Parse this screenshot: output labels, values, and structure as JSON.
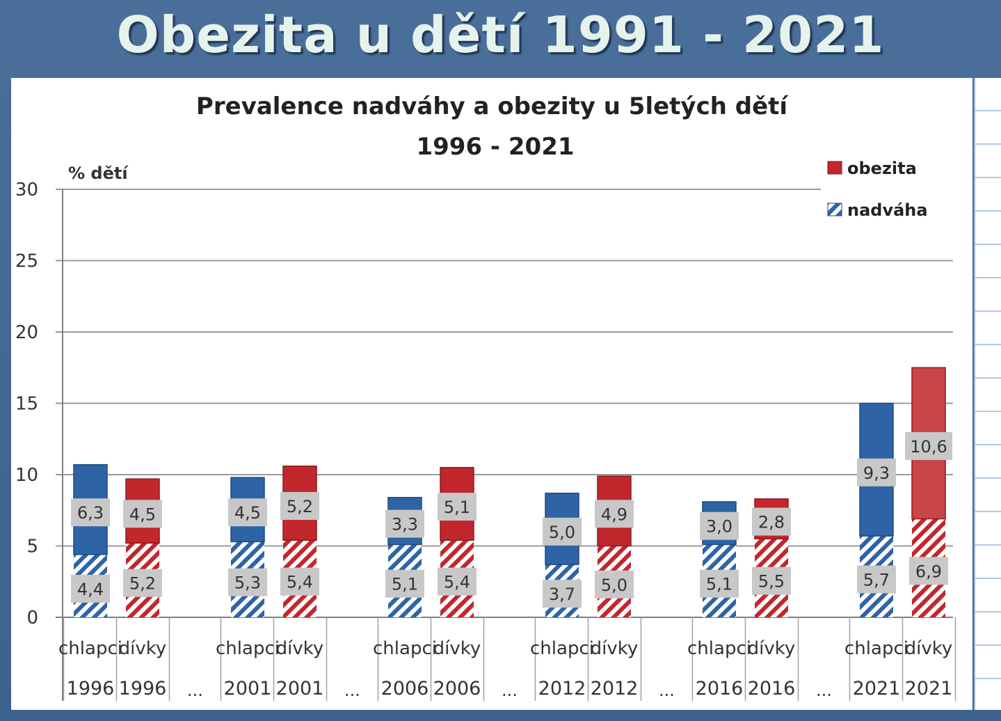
{
  "slide": {
    "title": "Obezita u dětí 1991 - 2021"
  },
  "chart_data": {
    "type": "bar",
    "stacked": true,
    "title": "Prevalence nadváhy a obezity u 5letých dětí",
    "subtitle": "1996 - 2021",
    "ylabel": "% dětí",
    "ylim": [
      0,
      30
    ],
    "yticks": [
      0,
      5,
      10,
      15,
      20,
      25,
      30
    ],
    "grid": true,
    "legend_position": "top-right",
    "legend": [
      {
        "name": "obezita",
        "pattern": "solid",
        "color": "#c1272d"
      },
      {
        "name": "nadváha",
        "pattern": "hatched",
        "color": "#2e64a6"
      }
    ],
    "separator_label": "...",
    "colors": {
      "boys": "#2e64a6",
      "girls": "#c1272d",
      "girls_2021": "#c9454a",
      "label_bg": "#c8c8c8"
    },
    "categories": [
      {
        "group": "chlapci",
        "year": "1996",
        "nadvaha": 4.4,
        "obezita": 6.3,
        "nadvaha_label": "4,4",
        "obezita_label": "6,3"
      },
      {
        "group": "dívky",
        "year": "1996",
        "nadvaha": 5.2,
        "obezita": 4.5,
        "nadvaha_label": "5,2",
        "obezita_label": "4,5"
      },
      {
        "group": "chlapci",
        "year": "2001",
        "nadvaha": 5.3,
        "obezita": 4.5,
        "nadvaha_label": "5,3",
        "obezita_label": "4,5"
      },
      {
        "group": "dívky",
        "year": "2001",
        "nadvaha": 5.4,
        "obezita": 5.2,
        "nadvaha_label": "5,4",
        "obezita_label": "5,2"
      },
      {
        "group": "chlapci",
        "year": "2006",
        "nadvaha": 5.1,
        "obezita": 3.3,
        "nadvaha_label": "5,1",
        "obezita_label": "3,3"
      },
      {
        "group": "dívky",
        "year": "2006",
        "nadvaha": 5.4,
        "obezita": 5.1,
        "nadvaha_label": "5,4",
        "obezita_label": "5,1"
      },
      {
        "group": "chlapci",
        "year": "2012",
        "nadvaha": 3.7,
        "obezita": 5.0,
        "nadvaha_label": "3,7",
        "obezita_label": "5,0"
      },
      {
        "group": "dívky",
        "year": "2012",
        "nadvaha": 5.0,
        "obezita": 4.9,
        "nadvaha_label": "5,0",
        "obezita_label": "4,9"
      },
      {
        "group": "chlapci",
        "year": "2016",
        "nadvaha": 5.1,
        "obezita": 3.0,
        "nadvaha_label": "5,1",
        "obezita_label": "3,0"
      },
      {
        "group": "dívky",
        "year": "2016",
        "nadvaha": 5.5,
        "obezita": 2.8,
        "nadvaha_label": "5,5",
        "obezita_label": "2,8"
      },
      {
        "group": "chlapci",
        "year": "2021",
        "nadvaha": 5.7,
        "obezita": 9.3,
        "nadvaha_label": "5,7",
        "obezita_label": "9,3"
      },
      {
        "group": "dívky",
        "year": "2021",
        "nadvaha": 6.9,
        "obezita": 10.6,
        "nadvaha_label": "6,9",
        "obezita_label": "10,6"
      }
    ]
  }
}
